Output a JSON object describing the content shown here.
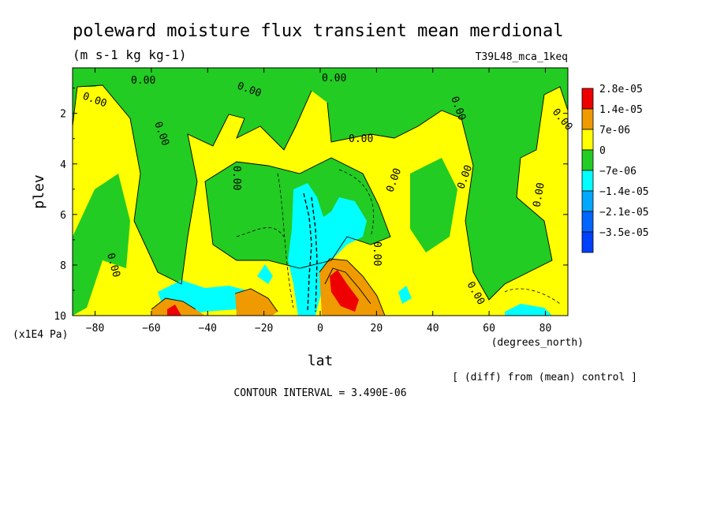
{
  "figure": {
    "title": "poleward moisture flux transient mean merdional",
    "units": "(m s-1 kg kg-1)",
    "experiment": "T39L48_mca_1keq",
    "footnote": "[ (diff) from (mean) control ]",
    "contour_interval": "CONTOUR INTERVAL = 3.490E-06"
  },
  "chart_data": {
    "type": "heatmap",
    "title": "poleward moisture flux transient mean merdional",
    "subtitle": "(m s-1 kg kg-1)",
    "xlabel": "lat",
    "x_units": "(degrees_north)",
    "ylabel": "plev",
    "y_units": "(x1E4 Pa)",
    "xlim": [
      -88,
      88
    ],
    "ylim": [
      0.2,
      10
    ],
    "y_inverted": true,
    "x_ticks": [
      -80,
      -60,
      -40,
      -20,
      0,
      20,
      40,
      60,
      80
    ],
    "x_tick_labels": [
      "−80",
      "−60",
      "−40",
      "−20",
      "0",
      "20",
      "40",
      "60",
      "80"
    ],
    "y_ticks": [
      2,
      4,
      6,
      8,
      10
    ],
    "y_tick_labels": [
      "2",
      "4",
      "6",
      "8",
      "10"
    ],
    "contour_labels": [
      "0.00"
    ],
    "legend": {
      "placement": "right",
      "entries": [
        {
          "label": "2.8e-05",
          "color": "#ee0000"
        },
        {
          "label": "1.4e-05",
          "color": "#ee9a00"
        },
        {
          "label": "7e-06",
          "color": "#ffff00"
        },
        {
          "label": "0",
          "color": "#22cc22"
        },
        {
          "label": "−7e-06",
          "color": "#00ffff"
        },
        {
          "label": "−1.4e-05",
          "color": "#00a8ff"
        },
        {
          "label": "−2.1e-05",
          "color": "#0066ff"
        },
        {
          "label": "−3.5e-05",
          "color": "#0040ff"
        }
      ]
    },
    "grid": false
  },
  "colors": {
    "positive_small": "#ffff00",
    "negative_small": "#22cc22"
  }
}
